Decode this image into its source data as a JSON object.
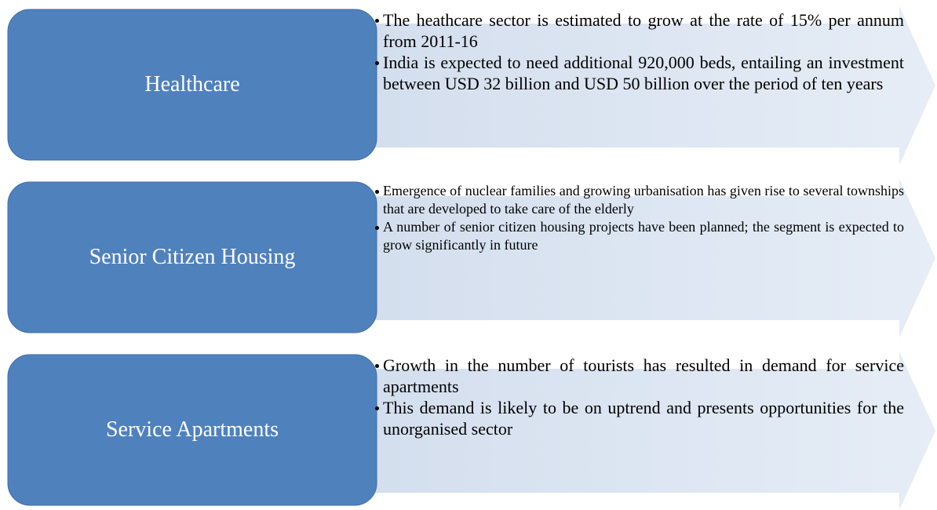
{
  "rows": [
    {
      "label": "Healthcare",
      "points": [
        "The heathcare sector is estimated to grow at the rate of 15% per annum from 2011-16",
        "India is expected to need additional 920,000 beds, entailing an investment between USD 32 billion and USD 50 billion over the period of ten years"
      ]
    },
    {
      "label": "Senior Citizen Housing",
      "points": [
        "Emergence of nuclear families and growing urbanisation has given rise to several townships that are developed to take care of the elderly",
        "A number of senior citizen housing projects have been planned; the segment is expected to grow significantly in future"
      ]
    },
    {
      "label": "Service Apartments",
      "points": [
        "Growth in the number of tourists has resulted in demand for service apartments",
        "This demand is likely to be on uptrend and presents opportunities for the unorganised sector"
      ]
    }
  ]
}
